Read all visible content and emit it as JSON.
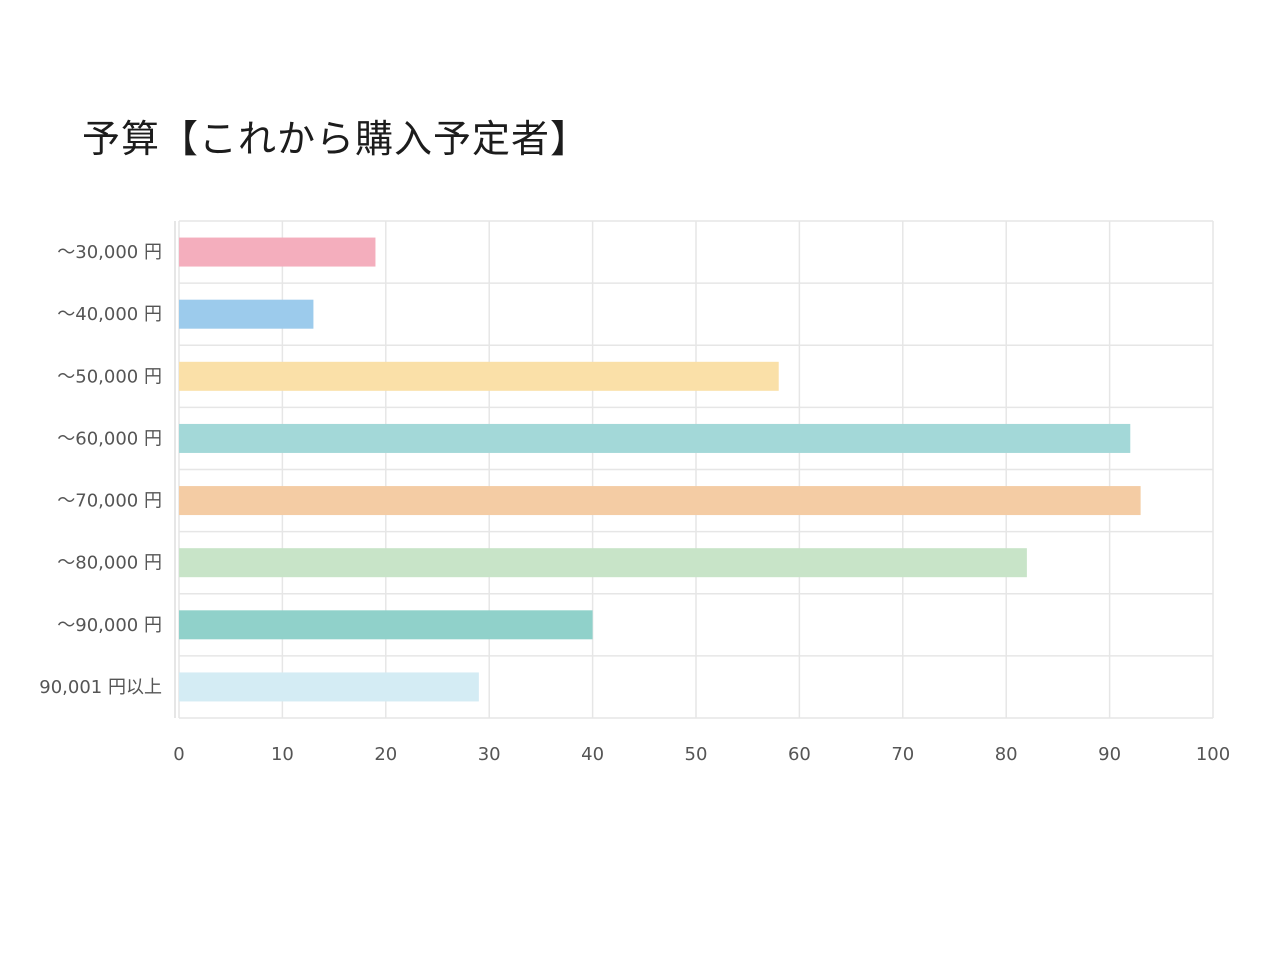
{
  "title": "予算【これから購入予定者】",
  "chart_data": {
    "type": "bar",
    "orientation": "horizontal",
    "title": "予算【これから購入予定者】",
    "xlabel": "",
    "ylabel": "",
    "categories": [
      "〜30,000 円",
      "〜40,000 円",
      "〜50,000 円",
      "〜60,000 円",
      "〜70,000 円",
      "〜80,000 円",
      "〜90,000 円",
      "90,001 円以上"
    ],
    "values": [
      19,
      13,
      58,
      92,
      93,
      82,
      40,
      29
    ],
    "xlim": [
      0,
      100
    ],
    "xticks": [
      0,
      10,
      20,
      30,
      40,
      50,
      60,
      70,
      80,
      90,
      100
    ],
    "grid": true,
    "legend": "none",
    "colors": [
      "#f4aebd",
      "#9ccbec",
      "#fae0a8",
      "#a3d8d8",
      "#f4cca4",
      "#c8e4c8",
      "#90d1ca",
      "#d4ecf4"
    ]
  }
}
